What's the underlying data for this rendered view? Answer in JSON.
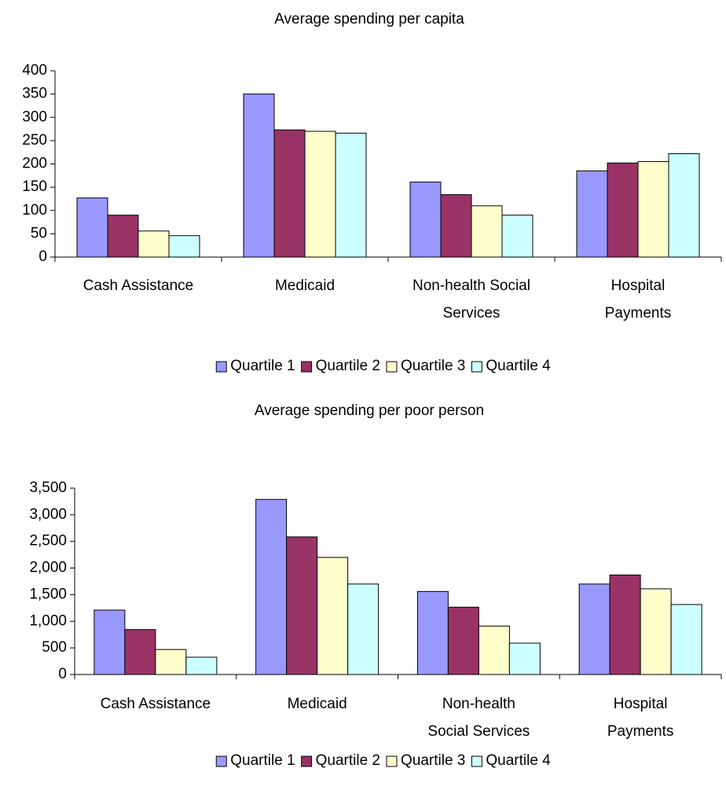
{
  "chart_data": [
    {
      "type": "bar",
      "title": "Average spending per capita",
      "categories": [
        "Cash Assistance",
        "Medicaid",
        "Non-health Social\nServices",
        "Hospital\nPayments"
      ],
      "series": [
        {
          "name": "Quartile 1",
          "color": "#9999ff",
          "values": [
            127,
            350,
            161,
            185
          ]
        },
        {
          "name": "Quartile 2",
          "color": "#993366",
          "values": [
            90,
            273,
            134,
            202
          ]
        },
        {
          "name": "Quartile 3",
          "color": "#ffffcc",
          "values": [
            56,
            270,
            110,
            205
          ]
        },
        {
          "name": "Quartile 4",
          "color": "#ccffff",
          "values": [
            46,
            266,
            90,
            222
          ]
        }
      ],
      "ylim": [
        0,
        400
      ],
      "yticks": [
        0,
        50,
        100,
        150,
        200,
        250,
        300,
        350,
        400
      ],
      "legend": "bottom"
    },
    {
      "type": "bar",
      "title": "Average spending per poor person",
      "categories": [
        "Cash Assistance",
        "Medicaid",
        "Non-health\nSocial Services",
        "Hospital\nPayments"
      ],
      "series": [
        {
          "name": "Quartile 1",
          "color": "#9999ff",
          "values": [
            1210,
            3290,
            1560,
            1700
          ]
        },
        {
          "name": "Quartile 2",
          "color": "#993366",
          "values": [
            845,
            2585,
            1265,
            1870
          ]
        },
        {
          "name": "Quartile 3",
          "color": "#ffffcc",
          "values": [
            470,
            2200,
            910,
            1610
          ]
        },
        {
          "name": "Quartile 4",
          "color": "#ccffff",
          "values": [
            325,
            1700,
            590,
            1315
          ]
        }
      ],
      "ylim": [
        0,
        3500
      ],
      "yticks": [
        0,
        500,
        {
          "value": 1000,
          "label": "1,000"
        },
        {
          "value": 1500,
          "label": "1,500"
        },
        {
          "value": 2000,
          "label": "2,000"
        },
        {
          "value": 2500,
          "label": "2,500"
        },
        {
          "value": 3000,
          "label": "3,000"
        },
        {
          "value": 3500,
          "label": "3,500"
        }
      ],
      "legend": "bottom"
    }
  ]
}
